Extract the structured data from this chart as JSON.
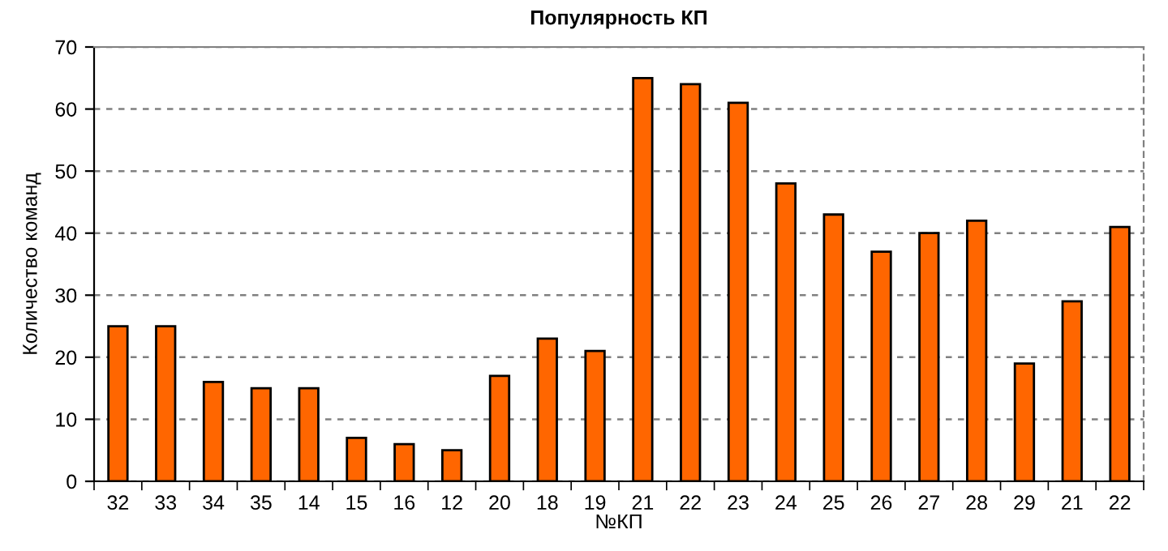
{
  "chart_data": {
    "type": "bar",
    "title": "Популярность КП",
    "xlabel": "№КП",
    "ylabel": "Количество команд",
    "categories": [
      "32",
      "33",
      "34",
      "35",
      "14",
      "15",
      "16",
      "12",
      "20",
      "18",
      "19",
      "21",
      "22",
      "23",
      "24",
      "25",
      "26",
      "27",
      "28",
      "29",
      "21",
      "22"
    ],
    "values": [
      25,
      25,
      16,
      15,
      15,
      7,
      6,
      5,
      17,
      23,
      21,
      65,
      64,
      61,
      48,
      43,
      37,
      40,
      42,
      19,
      29,
      41
    ],
    "color": "#ff6600",
    "ylim": [
      0,
      70
    ],
    "yticks": [
      0,
      10,
      20,
      30,
      40,
      50,
      60,
      70
    ],
    "grid": "y",
    "legend": false
  }
}
